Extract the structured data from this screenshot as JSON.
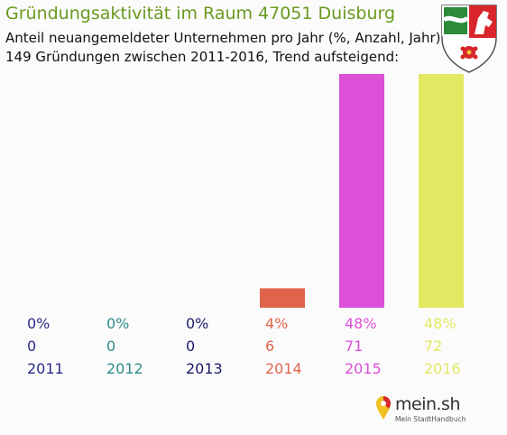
{
  "header": {
    "title": "Gründungsaktivität im Raum 47051 Duisburg",
    "subtitle_line1": "Anteil neuangemeldeter Unternehmen pro Jahr (%, Anzahl, Jahr)",
    "subtitle_line2": "149 Gründungen zwischen 2011-2016, Trend aufsteigend:"
  },
  "crest": {
    "icon": "nrw-coat-of-arms-icon"
  },
  "chart_data": {
    "type": "bar",
    "categories": [
      "2011",
      "2012",
      "2013",
      "2014",
      "2015",
      "2016"
    ],
    "values": [
      0,
      0,
      0,
      4,
      48,
      48
    ],
    "percent_labels": [
      "0%",
      "0%",
      "0%",
      "4%",
      "48%",
      "48%"
    ],
    "count_labels": [
      "0",
      "0",
      "0",
      "6",
      "71",
      "72"
    ],
    "colors": [
      "#2a2a8a",
      "#2e8a8a",
      "#1a1a6a",
      "#e0644c",
      "#dc50d8",
      "#e3e862"
    ],
    "ylim": [
      0,
      48
    ],
    "grid": false,
    "legend": "none"
  },
  "footer": {
    "logo_text": "mein.sh",
    "logo_sub": "Mein StadtHandbuch",
    "logo_icon": "map-pin-icon"
  }
}
